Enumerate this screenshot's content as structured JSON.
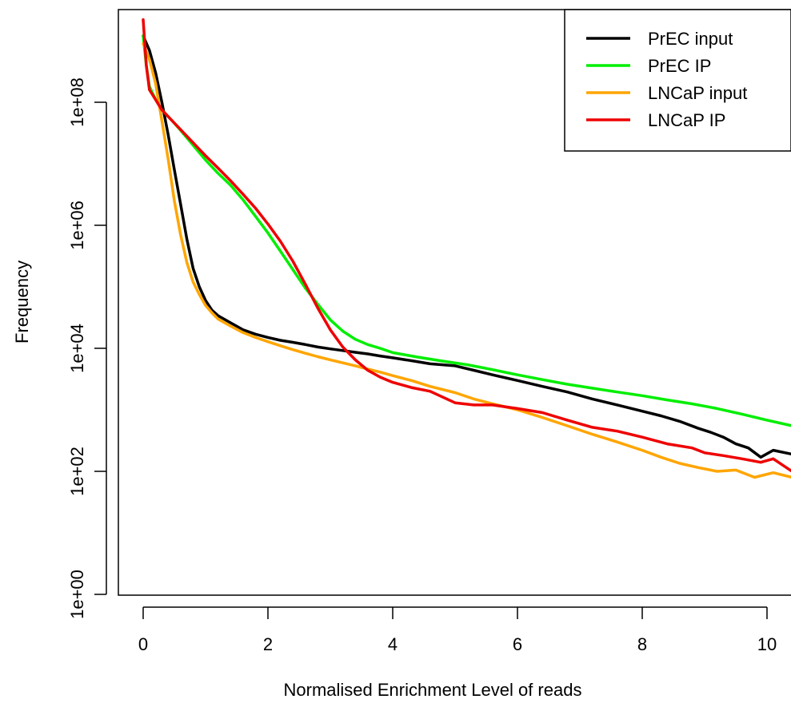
{
  "chart_data": {
    "type": "line",
    "title": "",
    "xlabel": "Normalised Enrichment Level of reads",
    "ylabel": "Frequency",
    "x_ticks": [
      0,
      2,
      4,
      6,
      8,
      10
    ],
    "x_tick_labels": [
      "0",
      "2",
      "4",
      "6",
      "8",
      "10"
    ],
    "y_scale": "log10",
    "y_ticks_exponent": [
      0,
      2,
      4,
      6,
      8
    ],
    "y_tick_labels": [
      "1e+00",
      "1e+02",
      "1e+04",
      "1e+06",
      "1e+08"
    ],
    "xlim": [
      -0.4,
      10.4
    ],
    "ylim_exponent": [
      -0.1,
      9.4
    ],
    "grid": false,
    "legend_position": "top-right",
    "series": [
      {
        "name": "PrEC input",
        "color": "#000000",
        "points": [
          [
            0,
            1200000000.0
          ],
          [
            0.1,
            700000000.0
          ],
          [
            0.2,
            300000000.0
          ],
          [
            0.3,
            100000000.0
          ],
          [
            0.4,
            30000000.0
          ],
          [
            0.5,
            8000000.0
          ],
          [
            0.6,
            2200000.0
          ],
          [
            0.7,
            600000.0
          ],
          [
            0.8,
            200000.0
          ],
          [
            0.9,
            100000.0
          ],
          [
            1.0,
            60000.0
          ],
          [
            1.1,
            42000.0
          ],
          [
            1.2,
            34000.0
          ],
          [
            1.4,
            26000.0
          ],
          [
            1.6,
            20000.0
          ],
          [
            1.8,
            17000.0
          ],
          [
            2.0,
            15000.0
          ],
          [
            2.2,
            13500.0
          ],
          [
            2.4,
            12500.0
          ],
          [
            2.6,
            11500.0
          ],
          [
            2.8,
            10500.0
          ],
          [
            3.0,
            9800.0
          ],
          [
            3.2,
            9200.0
          ],
          [
            3.4,
            8600.0
          ],
          [
            3.6,
            8100.0
          ],
          [
            3.8,
            7500.0
          ],
          [
            4.0,
            7000.0
          ],
          [
            4.3,
            6300.0
          ],
          [
            4.6,
            5600.0
          ],
          [
            5.0,
            5200.0
          ],
          [
            5.3,
            4400.0
          ],
          [
            5.6,
            3700.0
          ],
          [
            6.0,
            3000.0
          ],
          [
            6.4,
            2400.0
          ],
          [
            6.8,
            1950.0
          ],
          [
            7.2,
            1500.0
          ],
          [
            7.6,
            1200.0
          ],
          [
            8.0,
            950.0
          ],
          [
            8.3,
            800.0
          ],
          [
            8.6,
            650.0
          ],
          [
            8.9,
            500.0
          ],
          [
            9.1,
            430.0
          ],
          [
            9.3,
            360.0
          ],
          [
            9.5,
            280.0
          ],
          [
            9.7,
            240.0
          ],
          [
            9.9,
            170.0
          ],
          [
            10.1,
            220.0
          ],
          [
            10.4,
            190.0
          ]
        ]
      },
      {
        "name": "PrEC IP",
        "color": "#00ee00",
        "points": [
          [
            0,
            1200000000.0
          ],
          [
            0.05,
            400000000.0
          ],
          [
            0.1,
            180000000.0
          ],
          [
            0.2,
            110000000.0
          ],
          [
            0.3,
            75000000.0
          ],
          [
            0.45,
            52000000.0
          ],
          [
            0.6,
            35000000.0
          ],
          [
            0.8,
            20000000.0
          ],
          [
            1.0,
            11500000.0
          ],
          [
            1.2,
            7000000.0
          ],
          [
            1.4,
            4500000.0
          ],
          [
            1.6,
            2600000.0
          ],
          [
            1.8,
            1400000.0
          ],
          [
            2.0,
            750000.0
          ],
          [
            2.2,
            380000.0
          ],
          [
            2.4,
            190000.0
          ],
          [
            2.6,
            95000.0
          ],
          [
            2.8,
            52000.0
          ],
          [
            3.0,
            29000.0
          ],
          [
            3.2,
            19000.0
          ],
          [
            3.4,
            14000.0
          ],
          [
            3.6,
            11500.0
          ],
          [
            3.8,
            10000.0
          ],
          [
            4.0,
            8500.0
          ],
          [
            4.4,
            7200.0
          ],
          [
            4.8,
            6200.0
          ],
          [
            5.2,
            5400.0
          ],
          [
            5.6,
            4500.0
          ],
          [
            6.0,
            3700.0
          ],
          [
            6.4,
            3100.0
          ],
          [
            6.8,
            2600.0
          ],
          [
            7.2,
            2250.0
          ],
          [
            7.6,
            1950.0
          ],
          [
            8.0,
            1700.0
          ],
          [
            8.4,
            1450.0
          ],
          [
            8.8,
            1250.0
          ],
          [
            9.2,
            1050.0
          ],
          [
            9.6,
            850.0
          ],
          [
            10.0,
            680.0
          ],
          [
            10.4,
            550.0
          ]
        ]
      },
      {
        "name": "LNCaP input",
        "color": "#ffa500",
        "points": [
          [
            0,
            900000000.0
          ],
          [
            0.1,
            500000000.0
          ],
          [
            0.2,
            200000000.0
          ],
          [
            0.3,
            50000000.0
          ],
          [
            0.4,
            12000000.0
          ],
          [
            0.5,
            2500000.0
          ],
          [
            0.6,
            700000.0
          ],
          [
            0.7,
            250000.0
          ],
          [
            0.8,
            120000.0
          ],
          [
            0.9,
            75000.0
          ],
          [
            1.0,
            50000.0
          ],
          [
            1.1,
            38000.0
          ],
          [
            1.2,
            30000.0
          ],
          [
            1.4,
            23000.0
          ],
          [
            1.6,
            18000.0
          ],
          [
            1.8,
            15000.0
          ],
          [
            2.0,
            12800.0
          ],
          [
            2.2,
            11000.0
          ],
          [
            2.4,
            9500.0
          ],
          [
            2.6,
            8300.0
          ],
          [
            2.8,
            7300.0
          ],
          [
            3.0,
            6500.0
          ],
          [
            3.2,
            5800.0
          ],
          [
            3.4,
            5200.0
          ],
          [
            3.6,
            4600.0
          ],
          [
            3.8,
            4100.0
          ],
          [
            4.0,
            3600.0
          ],
          [
            4.3,
            3000.0
          ],
          [
            4.6,
            2400.0
          ],
          [
            5.0,
            1900.0
          ],
          [
            5.3,
            1500.0
          ],
          [
            5.6,
            1250.0
          ],
          [
            6.0,
            1000.0
          ],
          [
            6.4,
            750.0
          ],
          [
            6.8,
            550.0
          ],
          [
            7.2,
            400.0
          ],
          [
            7.6,
            300.0
          ],
          [
            8.0,
            220.0
          ],
          [
            8.3,
            170.0
          ],
          [
            8.6,
            135.0
          ],
          [
            8.9,
            115.0
          ],
          [
            9.2,
            100.0
          ],
          [
            9.5,
            105.0
          ],
          [
            9.8,
            80.0
          ],
          [
            10.1,
            95.0
          ],
          [
            10.4,
            80.0
          ]
        ]
      },
      {
        "name": "LNCaP IP",
        "color": "#ee0000",
        "points": [
          [
            0,
            2200000000.0
          ],
          [
            0.05,
            400000000.0
          ],
          [
            0.1,
            160000000.0
          ],
          [
            0.2,
            110000000.0
          ],
          [
            0.3,
            75000000.0
          ],
          [
            0.45,
            52000000.0
          ],
          [
            0.6,
            36000000.0
          ],
          [
            0.8,
            22000000.0
          ],
          [
            1.0,
            13500000.0
          ],
          [
            1.2,
            8500000.0
          ],
          [
            1.4,
            5300000.0
          ],
          [
            1.6,
            3200000.0
          ],
          [
            1.8,
            1900000.0
          ],
          [
            2.0,
            1050000.0
          ],
          [
            2.2,
            550000.0
          ],
          [
            2.4,
            260000.0
          ],
          [
            2.6,
            110000.0
          ],
          [
            2.8,
            45000.0
          ],
          [
            3.0,
            20000.0
          ],
          [
            3.2,
            10500.0
          ],
          [
            3.4,
            6500.0
          ],
          [
            3.6,
            4400.0
          ],
          [
            3.8,
            3400.0
          ],
          [
            4.0,
            2800.0
          ],
          [
            4.3,
            2300.0
          ],
          [
            4.6,
            2000.0
          ],
          [
            5.0,
            1300.0
          ],
          [
            5.3,
            1200.0
          ],
          [
            5.6,
            1200.0
          ],
          [
            6.0,
            1050.0
          ],
          [
            6.4,
            900.0
          ],
          [
            6.8,
            680.0
          ],
          [
            7.2,
            520.0
          ],
          [
            7.6,
            450.0
          ],
          [
            8.0,
            360.0
          ],
          [
            8.4,
            280.0
          ],
          [
            8.8,
            240.0
          ],
          [
            9.0,
            200.0
          ],
          [
            9.3,
            180.0
          ],
          [
            9.6,
            160.0
          ],
          [
            9.9,
            140.0
          ],
          [
            10.1,
            160.0
          ],
          [
            10.4,
            100.0
          ]
        ]
      }
    ]
  }
}
